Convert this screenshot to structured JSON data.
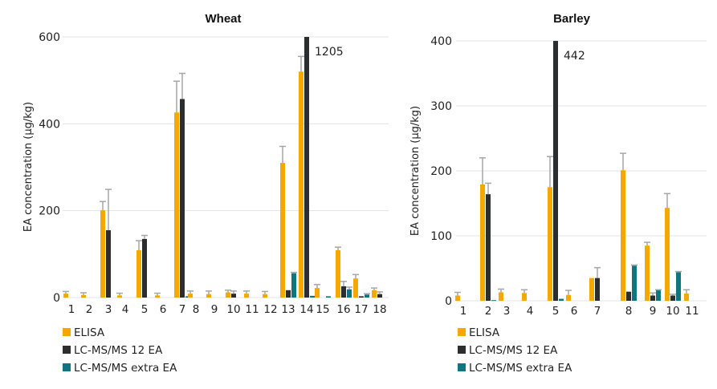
{
  "colors": {
    "ELISA": "#f5a800",
    "LC-MS/MS 12 EA": "#2b2d2f",
    "LC-MS/MS extra EA": "#0f7583",
    "error": "#a6a6a6",
    "grid": "#e3e3e3"
  },
  "chart_data": [
    {
      "type": "bar",
      "title": "Wheat",
      "xlabel": "",
      "ylabel": "EA concentration (µg/kg)",
      "ylim": [
        0,
        600
      ],
      "yticks": [
        0,
        200,
        400,
        600
      ],
      "grid": true,
      "legend": "bottom-left",
      "categories": [
        "1",
        "2",
        "3",
        "4",
        "5",
        "6",
        "7",
        "8",
        "9",
        "10",
        "11",
        "12",
        "13",
        "14",
        "15",
        "16",
        "17",
        "18"
      ],
      "series": [
        {
          "name": "ELISA",
          "values": [
            9,
            6,
            201,
            5,
            109,
            5,
            426,
            9,
            8,
            12,
            9,
            8,
            310,
            520,
            22,
            109,
            44,
            17
          ],
          "error_upper": [
            14,
            11,
            221,
            10,
            131,
            10,
            498,
            15,
            15,
            17,
            15,
            14,
            348,
            555,
            30,
            116,
            53,
            22
          ]
        },
        {
          "name": "LC-MS/MS 12 EA",
          "values": [
            0,
            0,
            155,
            0,
            135,
            0,
            457,
            0,
            0,
            9,
            0,
            0,
            17,
            1205,
            0,
            26,
            3,
            8
          ],
          "error_upper": [
            null,
            null,
            249,
            null,
            143,
            null,
            516,
            null,
            null,
            15,
            null,
            null,
            null,
            null,
            null,
            37,
            null,
            13
          ]
        },
        {
          "name": "LC-MS/MS extra EA",
          "values": [
            0,
            0,
            0,
            0,
            0,
            0,
            3,
            0,
            0,
            0,
            0,
            0,
            56,
            4,
            3,
            19,
            7,
            0
          ],
          "error_upper": [
            null,
            null,
            null,
            null,
            null,
            null,
            null,
            null,
            null,
            null,
            null,
            null,
            58,
            null,
            null,
            24,
            9,
            null
          ]
        }
      ],
      "annotations": [
        {
          "category": "14",
          "series": "LC-MS/MS 12 EA",
          "text": "1205"
        }
      ]
    },
    {
      "type": "bar",
      "title": "Barley",
      "xlabel": "",
      "ylabel": "EA concentration (µg/kg)",
      "ylim": [
        0,
        400
      ],
      "yticks": [
        0,
        100,
        200,
        300,
        400
      ],
      "grid": true,
      "legend": "bottom-left",
      "categories": [
        "1",
        "2",
        "3",
        "4",
        "5",
        "6",
        "7",
        "8",
        "9",
        "10",
        "11"
      ],
      "series": [
        {
          "name": "ELISA",
          "values": [
            8,
            179,
            13,
            12,
            175,
            9,
            35,
            201,
            85,
            143,
            11
          ],
          "error_upper": [
            13,
            220,
            18,
            17,
            222,
            16,
            35,
            227,
            90,
            165,
            17
          ]
        },
        {
          "name": "LC-MS/MS 12 EA",
          "values": [
            0,
            164,
            0,
            0,
            442,
            0,
            35,
            14,
            8,
            8,
            0
          ],
          "error_upper": [
            null,
            181,
            null,
            null,
            null,
            null,
            51,
            14,
            12,
            10,
            null
          ]
        },
        {
          "name": "LC-MS/MS extra EA",
          "values": [
            0,
            1,
            0,
            0,
            3,
            0,
            0,
            54,
            16,
            44,
            0
          ],
          "error_upper": [
            null,
            null,
            null,
            null,
            null,
            null,
            null,
            55,
            17,
            45,
            null
          ]
        }
      ],
      "annotations": [
        {
          "category": "5",
          "series": "LC-MS/MS 12 EA",
          "text": "442"
        }
      ]
    }
  ]
}
